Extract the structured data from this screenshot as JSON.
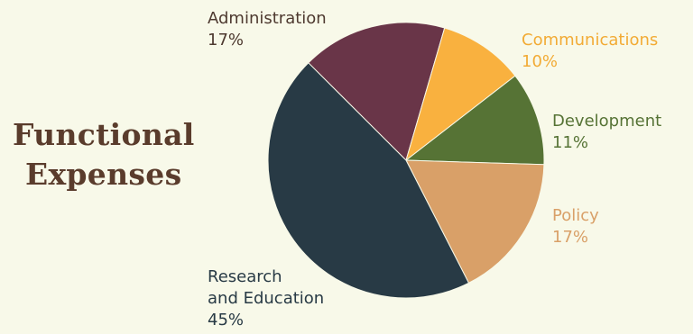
{
  "chart_data": {
    "type": "pie",
    "title": [
      "Functional",
      "Expenses"
    ],
    "slices": [
      {
        "label": [
          "Administration"
        ],
        "value": 17,
        "value_label": "17%",
        "color": "#693548"
      },
      {
        "label": [
          "Communications"
        ],
        "value": 10,
        "value_label": "10%",
        "color": "#f9b13f"
      },
      {
        "label": [
          "Development"
        ],
        "value": 11,
        "value_label": "11%",
        "color": "#567335"
      },
      {
        "label": [
          "Policy"
        ],
        "value": 17,
        "value_label": "17%",
        "color": "#d9a068"
      },
      {
        "label": [
          "Research",
          "and Education"
        ],
        "value": 45,
        "value_label": "45%",
        "color": "#283a45"
      }
    ],
    "legend": "none",
    "label_colors": {
      "Administration": "#4e3a30",
      "Communications": "#f2ab35",
      "Development": "#567335",
      "Policy": "#d9a068",
      "Research and Education": "#283a45"
    }
  }
}
